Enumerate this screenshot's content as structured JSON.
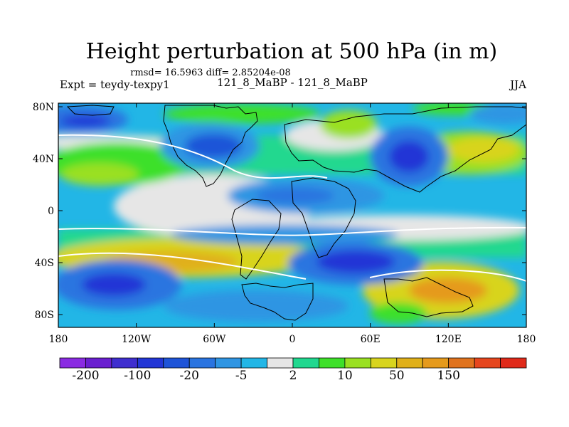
{
  "title": "Height perturbation at 500 hPa (in m)",
  "stats": "rmsd= 16.5963 diff= 2.85204e-08",
  "left_label": "Expt = teydy-texpy1",
  "center_label": "121_8_MaBP - 121_8_MaBP",
  "right_label": "JJA",
  "lat_ticks": [
    "80N",
    "40N",
    "0",
    "40S",
    "80S"
  ],
  "lon_ticks": [
    "180",
    "120W",
    "60W",
    "0",
    "60E",
    "120E",
    "180"
  ],
  "colorbar": {
    "colors": [
      "#8a2be2",
      "#6a1fd0",
      "#3f2ecf",
      "#2236d6",
      "#1e54d8",
      "#2a74e0",
      "#2f95e3",
      "#22b6e6",
      "#e6e6e6",
      "#20d88f",
      "#3ee02a",
      "#9ae022",
      "#d8d41e",
      "#e0b01a",
      "#e59a1c",
      "#e0731e",
      "#e6461e",
      "#e02a1a"
    ],
    "labels": [
      "-200",
      "-100",
      "-20",
      "-5",
      "2",
      "10",
      "50",
      "150"
    ]
  }
}
